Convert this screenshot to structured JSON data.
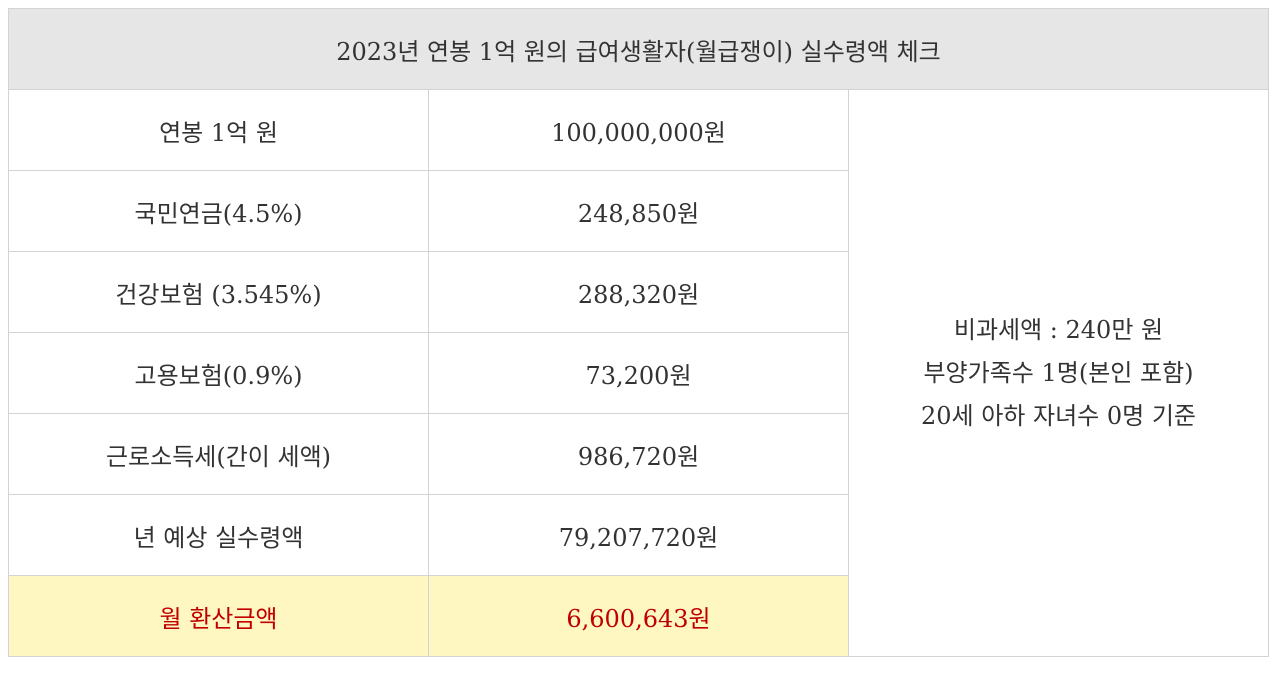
{
  "title": "2023년 연봉 1억 원의 급여생활자(월급쟁이) 실수령액 체크",
  "rows": [
    {
      "label": "연봉 1억 원",
      "value": "100,000,000원"
    },
    {
      "label": "국민연금(4.5%)",
      "value": "248,850원"
    },
    {
      "label": "건강보험 (3.545%)",
      "value": "288,320원"
    },
    {
      "label": "고용보험(0.9%)",
      "value": "73,200원"
    },
    {
      "label": "근로소득세(간이 세액)",
      "value": "986,720원"
    },
    {
      "label": "년 예상 실수령액",
      "value": "79,207,720원"
    }
  ],
  "monthly": {
    "label": "월 환산금액",
    "value": "6,600,643원"
  },
  "notes": [
    "비과세액 : 240만 원",
    "부양가족수 1명(본인 포함)",
    "20세 아하 자녀수 0명 기준"
  ],
  "colors": {
    "header_bg": "#e6e6e6",
    "highlight_bg": "#fff7c2",
    "highlight_text": "#c00000"
  }
}
